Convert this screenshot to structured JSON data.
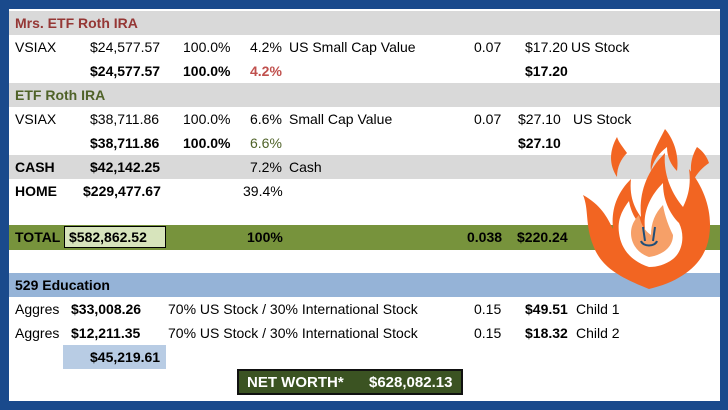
{
  "sections": {
    "mrs_roth": {
      "title": "Mrs. ETF Roth IRA",
      "row": {
        "ticker": "VSIAX",
        "value": "$24,577.57",
        "alloc": "100.0%",
        "pct": "4.2%",
        "desc": "US Small Cap Value",
        "er": "0.07",
        "cost": "$17.20",
        "type": "US Stock"
      },
      "subtotal": {
        "value": "$24,577.57",
        "alloc": "100.0%",
        "pct": "4.2%",
        "cost": "$17.20"
      }
    },
    "etf_roth": {
      "title": "ETF Roth IRA",
      "row": {
        "ticker": "VSIAX",
        "value": "$38,711.86",
        "alloc": "100.0%",
        "pct": "6.6%",
        "desc": "Small Cap Value",
        "er": "0.07",
        "cost": "$27.10",
        "type": "US Stock"
      },
      "subtotal": {
        "value": "$38,711.86",
        "alloc": "100.0%",
        "pct": "6.6%",
        "cost": "$27.10"
      }
    },
    "cash": {
      "label": "CASH",
      "value": "$42,142.25",
      "pct": "7.2%",
      "desc": "Cash"
    },
    "home": {
      "label": "HOME",
      "value": "$229,477.67",
      "pct": "39.4%"
    },
    "total": {
      "label": "TOTAL",
      "value": "$582,862.52",
      "pct": "100%",
      "er": "0.038",
      "cost": "$220.24"
    },
    "education": {
      "title": "529 Education",
      "rows": [
        {
          "ticker": "Aggres",
          "value": "$33,008.26",
          "desc": "70% US Stock / 30% International Stock",
          "er": "0.15",
          "cost": "$49.51",
          "owner": "Child 1"
        },
        {
          "ticker": "Aggres",
          "value": "$12,211.35",
          "desc": "70% US Stock / 30% International Stock",
          "er": "0.15",
          "cost": "$18.32",
          "owner": "Child 2"
        }
      ],
      "subtotal": "$45,219.61"
    },
    "net_worth": {
      "label": "NET WORTH*",
      "value": "$628,082.13"
    }
  },
  "colors": {
    "frame": "#1a4a8c",
    "header_grey": "#d9d9d9",
    "total_green": "#77933c",
    "education_blue": "#95b3d7",
    "flame_orange": "#f26522"
  },
  "icons": [
    "flame-logo-icon"
  ]
}
